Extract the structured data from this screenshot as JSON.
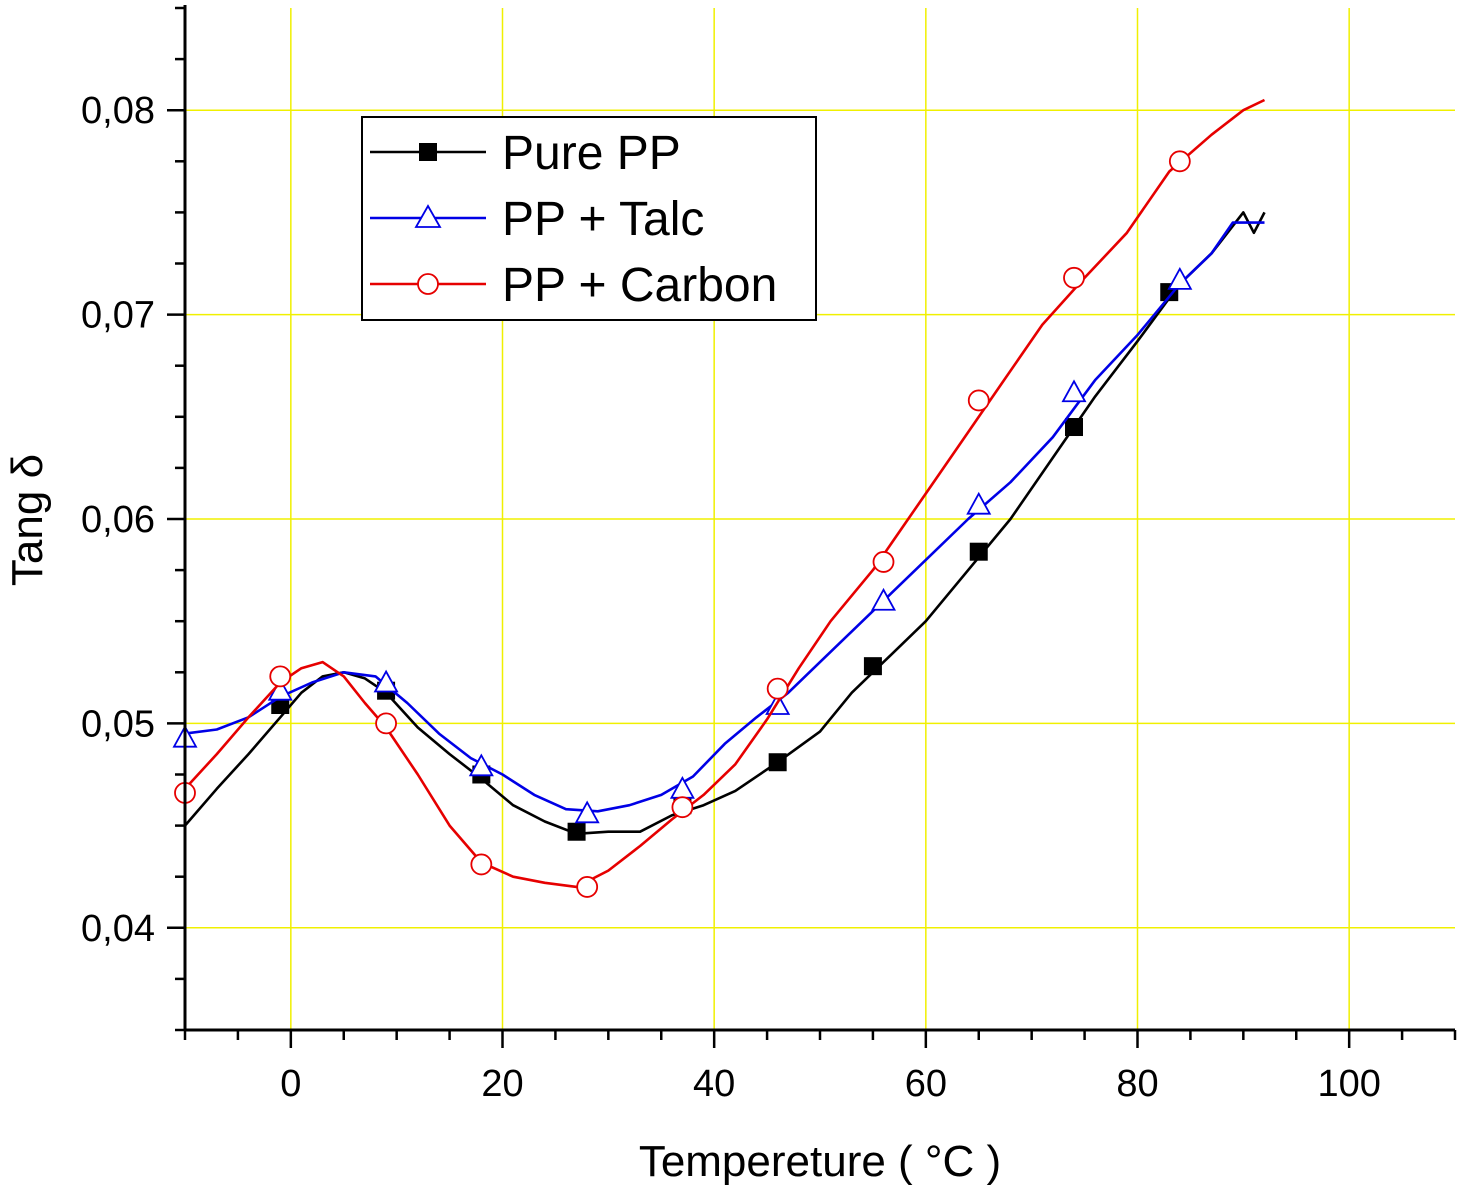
{
  "chart_data": {
    "type": "line",
    "xlabel": "Tempereture ( °C )",
    "ylabel": "Tang δ",
    "xlim": [
      -10,
      110
    ],
    "ylim": [
      0.035,
      0.085
    ],
    "xticks": [
      0,
      20,
      40,
      60,
      80,
      100
    ],
    "xtick_labels": [
      "0",
      "20",
      "40",
      "60",
      "80",
      "100"
    ],
    "yticks": [
      0.04,
      0.05,
      0.06,
      0.07,
      0.08
    ],
    "ytick_labels": [
      "0,04",
      "0,05",
      "0,06",
      "0,07",
      "0,08"
    ],
    "grid": true,
    "grid_color": "#f0f000",
    "legend_position": "top-left",
    "series": [
      {
        "name": "Pure PP",
        "color": "#000000",
        "marker": "filled-square",
        "x": [
          -10,
          -7,
          -4,
          -1,
          1,
          3,
          5,
          7,
          9,
          12,
          15,
          18,
          21,
          24,
          27,
          30,
          33,
          36,
          39,
          42,
          46,
          50,
          53,
          56,
          60,
          64,
          68,
          72,
          76,
          80,
          84,
          87,
          90,
          91,
          92
        ],
        "y": [
          0.045,
          0.0468,
          0.0485,
          0.0503,
          0.0515,
          0.0523,
          0.0525,
          0.0522,
          0.0515,
          0.0498,
          0.0485,
          0.0473,
          0.046,
          0.0452,
          0.0446,
          0.0447,
          0.0447,
          0.0455,
          0.046,
          0.0467,
          0.0481,
          0.0496,
          0.0515,
          0.053,
          0.055,
          0.0575,
          0.06,
          0.063,
          0.066,
          0.0687,
          0.0715,
          0.073,
          0.075,
          0.074,
          0.075
        ],
        "marker_x": [
          -1,
          9,
          18,
          27,
          37,
          46,
          55,
          65,
          74,
          83
        ],
        "marker_y": [
          0.0509,
          0.0516,
          0.0475,
          0.0447,
          0.046,
          0.0481,
          0.0528,
          0.0584,
          0.0645,
          0.0711
        ]
      },
      {
        "name": "PP + Talc",
        "color": "#0000e6",
        "marker": "open-triangle",
        "x": [
          -10,
          -7,
          -4,
          -1,
          2,
          5,
          8,
          11,
          14,
          17,
          20,
          23,
          26,
          29,
          32,
          35,
          38,
          41,
          44,
          47,
          50,
          53,
          56,
          60,
          64,
          68,
          72,
          76,
          80,
          84,
          87,
          89,
          92
        ],
        "y": [
          0.0495,
          0.0497,
          0.0503,
          0.0513,
          0.052,
          0.0525,
          0.0523,
          0.051,
          0.0495,
          0.0483,
          0.0475,
          0.0465,
          0.0458,
          0.0457,
          0.046,
          0.0465,
          0.0474,
          0.049,
          0.0503,
          0.0515,
          0.053,
          0.0545,
          0.056,
          0.058,
          0.06,
          0.0618,
          0.064,
          0.0668,
          0.069,
          0.0715,
          0.073,
          0.0745,
          0.0745
        ],
        "marker_x": [
          -10,
          -1,
          9,
          18,
          28,
          37,
          46,
          56,
          65,
          74,
          84
        ],
        "marker_y": [
          0.0493,
          0.0516,
          0.052,
          0.0479,
          0.0456,
          0.0468,
          0.0509,
          0.056,
          0.0607,
          0.0662,
          0.0717
        ]
      },
      {
        "name": "PP + Carbon",
        "color": "#e60000",
        "marker": "open-circle",
        "x": [
          -10,
          -7,
          -4,
          -1,
          1,
          3,
          5,
          7,
          9,
          12,
          15,
          18,
          21,
          24,
          27,
          30,
          33,
          36,
          39,
          42,
          45,
          48,
          51,
          55,
          59,
          63,
          67,
          71,
          75,
          79,
          83,
          87,
          90,
          92
        ],
        "y": [
          0.0468,
          0.0485,
          0.0503,
          0.052,
          0.0527,
          0.053,
          0.0523,
          0.051,
          0.0498,
          0.0475,
          0.045,
          0.0432,
          0.0425,
          0.0422,
          0.042,
          0.0428,
          0.044,
          0.0453,
          0.0465,
          0.048,
          0.0502,
          0.0527,
          0.055,
          0.0575,
          0.0605,
          0.0635,
          0.0665,
          0.0695,
          0.0718,
          0.074,
          0.077,
          0.0788,
          0.08,
          0.0805
        ],
        "marker_x": [
          -10,
          -1,
          9,
          18,
          28,
          37,
          46,
          56,
          65,
          74,
          84
        ],
        "marker_y": [
          0.0466,
          0.0523,
          0.05,
          0.0431,
          0.042,
          0.0459,
          0.0517,
          0.0579,
          0.0658,
          0.0718,
          0.0775
        ]
      }
    ]
  }
}
